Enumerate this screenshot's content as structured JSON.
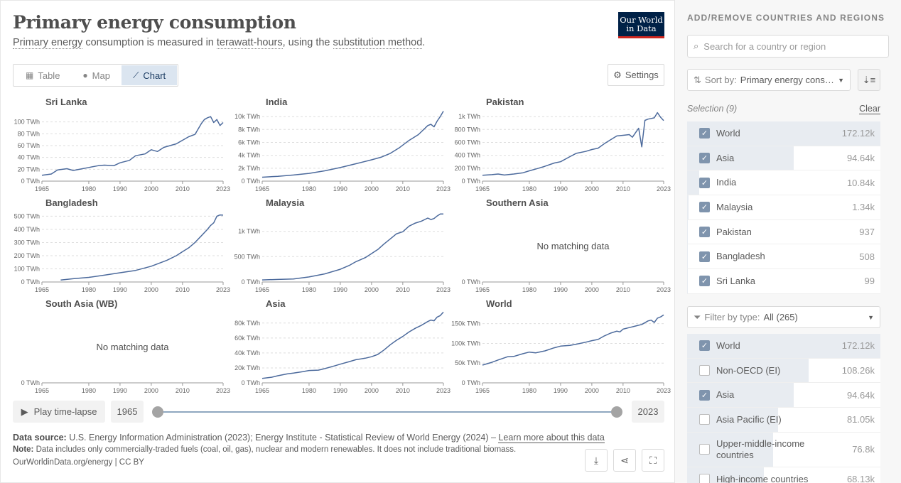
{
  "header": {
    "title": "Primary energy consumption",
    "subtitle_parts": [
      "Primary energy",
      " consumption is measured in ",
      "terawatt-hours",
      ", using the ",
      "substitution method",
      "."
    ],
    "logo_line1": "Our World",
    "logo_line2": "in Data"
  },
  "tabs": [
    {
      "label": "Table",
      "icon": "table-icon"
    },
    {
      "label": "Map",
      "icon": "globe-icon"
    },
    {
      "label": "Chart",
      "icon": "line-chart-icon",
      "active": true
    }
  ],
  "settings_label": "Settings",
  "no_data_text": "No matching data",
  "line_color": "#4c6a9c",
  "chart_data": [
    {
      "type": "line",
      "title": "Sri Lanka",
      "x_ticks": [
        "1965",
        "1980",
        "1990",
        "2000",
        "2010",
        "2023"
      ],
      "y_ticks": [
        "0 TWh",
        "20 TWh",
        "40 TWh",
        "60 TWh",
        "80 TWh",
        "100 TWh"
      ],
      "ylim": [
        0,
        120
      ],
      "series": [
        {
          "x": [
            1965,
            1968,
            1970,
            1973,
            1975,
            1978,
            1980,
            1983,
            1985,
            1988,
            1990,
            1993,
            1995,
            1998,
            2000,
            2002,
            2004,
            2006,
            2008,
            2010,
            2012,
            2014,
            2016,
            2017,
            2018,
            2019,
            2020,
            2021,
            2022,
            2023
          ],
          "values": [
            10,
            12,
            19,
            21,
            18,
            21,
            23,
            26,
            27,
            26,
            31,
            35,
            43,
            46,
            53,
            50,
            57,
            60,
            63,
            69,
            75,
            79,
            97,
            104,
            107,
            109,
            99,
            104,
            94,
            99
          ]
        }
      ]
    },
    {
      "type": "line",
      "title": "India",
      "x_ticks": [
        "1965",
        "1980",
        "1990",
        "2000",
        "2010",
        "2023"
      ],
      "y_ticks": [
        "0 TWh",
        "2k TWh",
        "4k TWh",
        "6k TWh",
        "8k TWh",
        "10k TWh"
      ],
      "ylim": [
        0,
        11000
      ],
      "series": [
        {
          "x": [
            1965,
            1970,
            1975,
            1980,
            1985,
            1990,
            1995,
            2000,
            2003,
            2006,
            2009,
            2012,
            2015,
            2018,
            2019,
            2020,
            2021,
            2022,
            2023
          ],
          "values": [
            600,
            750,
            950,
            1200,
            1600,
            2100,
            2700,
            3300,
            3700,
            4300,
            5200,
            6300,
            7200,
            8600,
            8800,
            8400,
            9300,
            10000,
            10840
          ]
        }
      ]
    },
    {
      "type": "line",
      "title": "Pakistan",
      "x_ticks": [
        "1965",
        "1980",
        "1990",
        "2000",
        "2010",
        "2023"
      ],
      "y_ticks": [
        "0 TWh",
        "200 TWh",
        "400 TWh",
        "600 TWh",
        "800 TWh",
        "1k TWh"
      ],
      "ylim": [
        0,
        1100
      ],
      "series": [
        {
          "x": [
            1965,
            1968,
            1970,
            1972,
            1975,
            1978,
            1980,
            1983,
            1985,
            1988,
            1990,
            1993,
            1995,
            1998,
            2000,
            2002,
            2004,
            2006,
            2008,
            2010,
            2012,
            2013,
            2014,
            2015,
            2016,
            2017,
            2018,
            2019,
            2020,
            2021,
            2022,
            2023
          ],
          "values": [
            90,
            100,
            110,
            95,
            110,
            130,
            160,
            200,
            230,
            280,
            300,
            380,
            430,
            460,
            490,
            510,
            580,
            640,
            700,
            710,
            720,
            680,
            750,
            820,
            530,
            940,
            960,
            970,
            980,
            1060,
            990,
            937
          ]
        }
      ]
    },
    {
      "type": "line",
      "title": "Bangladesh",
      "x_ticks": [
        "1965",
        "1980",
        "1990",
        "2000",
        "2010",
        "2023"
      ],
      "y_ticks": [
        "0 TWh",
        "100 TWh",
        "200 TWh",
        "300 TWh",
        "400 TWh",
        "500 TWh"
      ],
      "ylim": [
        0,
        540
      ],
      "series": [
        {
          "x": [
            1971,
            1975,
            1980,
            1985,
            1990,
            1995,
            2000,
            2005,
            2008,
            2010,
            2012,
            2014,
            2016,
            2018,
            2019,
            2020,
            2021,
            2022,
            2023
          ],
          "values": [
            15,
            25,
            35,
            52,
            70,
            88,
            120,
            165,
            200,
            230,
            260,
            300,
            350,
            400,
            430,
            450,
            500,
            510,
            508
          ]
        }
      ]
    },
    {
      "type": "line",
      "title": "Malaysia",
      "x_ticks": [
        "1965",
        "1980",
        "1990",
        "2000",
        "2010",
        "2023"
      ],
      "y_ticks": [
        "0 TWh",
        "500 TWh",
        "1k TWh"
      ],
      "ylim": [
        0,
        1400
      ],
      "series": [
        {
          "x": [
            1965,
            1970,
            1975,
            1980,
            1985,
            1990,
            1993,
            1995,
            1998,
            2000,
            2002,
            2004,
            2006,
            2008,
            2010,
            2012,
            2014,
            2016,
            2018,
            2019,
            2020,
            2021,
            2022,
            2023
          ],
          "values": [
            40,
            50,
            60,
            100,
            160,
            250,
            330,
            400,
            480,
            560,
            640,
            750,
            850,
            950,
            990,
            1100,
            1160,
            1200,
            1260,
            1230,
            1250,
            1300,
            1340,
            1340
          ]
        }
      ]
    },
    {
      "type": "line",
      "title": "Southern Asia",
      "x_ticks": [
        "1965",
        "1980",
        "1990",
        "2000",
        "2010",
        "2023"
      ],
      "y_ticks": [
        "0 TWh"
      ],
      "ylim": [
        0,
        1
      ],
      "series": []
    },
    {
      "type": "line",
      "title": "South Asia (WB)",
      "x_ticks": [
        "1965",
        "1980",
        "1990",
        "2000",
        "2010",
        "2023"
      ],
      "y_ticks": [
        "0 TWh"
      ],
      "ylim": [
        0,
        1
      ],
      "series": []
    },
    {
      "type": "line",
      "title": "Asia",
      "x_ticks": [
        "1965",
        "1980",
        "1990",
        "2000",
        "2010",
        "2023"
      ],
      "y_ticks": [
        "0 TWh",
        "20k TWh",
        "40k TWh",
        "60k TWh",
        "80k TWh"
      ],
      "ylim": [
        0,
        95000
      ],
      "series": [
        {
          "x": [
            1965,
            1968,
            1970,
            1973,
            1975,
            1978,
            1980,
            1983,
            1985,
            1988,
            1990,
            1993,
            1995,
            1998,
            2000,
            2002,
            2004,
            2006,
            2008,
            2010,
            2012,
            2014,
            2016,
            2018,
            2019,
            2020,
            2021,
            2022,
            2023
          ],
          "values": [
            6000,
            7500,
            9500,
            12000,
            13000,
            15000,
            16500,
            17000,
            19000,
            22500,
            25000,
            28500,
            31000,
            33000,
            35000,
            38000,
            44000,
            51000,
            57000,
            62000,
            68000,
            73000,
            77000,
            82000,
            84000,
            83000,
            88000,
            90000,
            94640
          ]
        }
      ]
    },
    {
      "type": "line",
      "title": "World",
      "x_ticks": [
        "1965",
        "1980",
        "1990",
        "2000",
        "2010",
        "2023"
      ],
      "y_ticks": [
        "0 TWh",
        "50k TWh",
        "100k TWh",
        "150k TWh"
      ],
      "ylim": [
        0,
        180000
      ],
      "series": [
        {
          "x": [
            1965,
            1968,
            1970,
            1973,
            1975,
            1978,
            1980,
            1982,
            1985,
            1988,
            1990,
            1993,
            1995,
            1998,
            2000,
            2002,
            2004,
            2006,
            2008,
            2009,
            2010,
            2012,
            2014,
            2016,
            2018,
            2019,
            2020,
            2021,
            2022,
            2023
          ],
          "values": [
            45000,
            52000,
            58000,
            66000,
            67000,
            74000,
            78000,
            76000,
            81000,
            89000,
            93000,
            95000,
            98000,
            103000,
            107000,
            110000,
            119000,
            126000,
            131000,
            129000,
            136000,
            140000,
            144000,
            148000,
            157000,
            159000,
            153000,
            164000,
            167000,
            172120
          ]
        }
      ]
    }
  ],
  "timeline": {
    "play_label": "Play time-lapse",
    "start_year": "1965",
    "end_year": "2023",
    "start_fraction": 0,
    "end_fraction": 1
  },
  "footer": {
    "source_label": "Data source:",
    "source_text": " U.S. Energy Information Administration (2023); Energy Institute - Statistical Review of World Energy (2024) – ",
    "learn_more": "Learn more about this data",
    "note_label": "Note:",
    "note_text": " Data includes only commercially-traded fuels (coal, oil, gas), nuclear and modern renewables. It does not include traditional biomass.",
    "citation": "OurWorldinData.org/energy | CC BY"
  },
  "sidebar": {
    "heading": "ADD/REMOVE COUNTRIES AND REGIONS",
    "search_placeholder": "Search for a country or region",
    "sort_prefix": "Sort by:",
    "sort_value": "Primary energy consumption",
    "selection_label": "Selection (9)",
    "clear_label": "Clear",
    "selected": [
      {
        "name": "World",
        "value": "172.12k",
        "share": 1.0,
        "checked": true
      },
      {
        "name": "Asia",
        "value": "94.64k",
        "share": 0.55,
        "checked": true
      },
      {
        "name": "India",
        "value": "10.84k",
        "share": 0.063,
        "checked": true
      },
      {
        "name": "Malaysia",
        "value": "1.34k",
        "share": 0.008,
        "checked": true
      },
      {
        "name": "Pakistan",
        "value": "937",
        "share": 0.005,
        "checked": true
      },
      {
        "name": "Bangladesh",
        "value": "508",
        "share": 0.003,
        "checked": true
      },
      {
        "name": "Sri Lanka",
        "value": "99",
        "share": 0.0006,
        "checked": true
      }
    ],
    "filter_prefix": "Filter by type:",
    "filter_value": "All (265)",
    "all_items": [
      {
        "name": "World",
        "value": "172.12k",
        "share": 1.0,
        "checked": true
      },
      {
        "name": "Non-OECD (EI)",
        "value": "108.26k",
        "share": 0.629,
        "checked": false
      },
      {
        "name": "Asia",
        "value": "94.64k",
        "share": 0.55,
        "checked": true
      },
      {
        "name": "Asia Pacific (EI)",
        "value": "81.05k",
        "share": 0.471,
        "checked": false
      },
      {
        "name": "Upper-middle-income countries",
        "value": "76.8k",
        "share": 0.446,
        "checked": false
      },
      {
        "name": "High-income countries",
        "value": "68.13k",
        "share": 0.396,
        "checked": false
      }
    ]
  }
}
